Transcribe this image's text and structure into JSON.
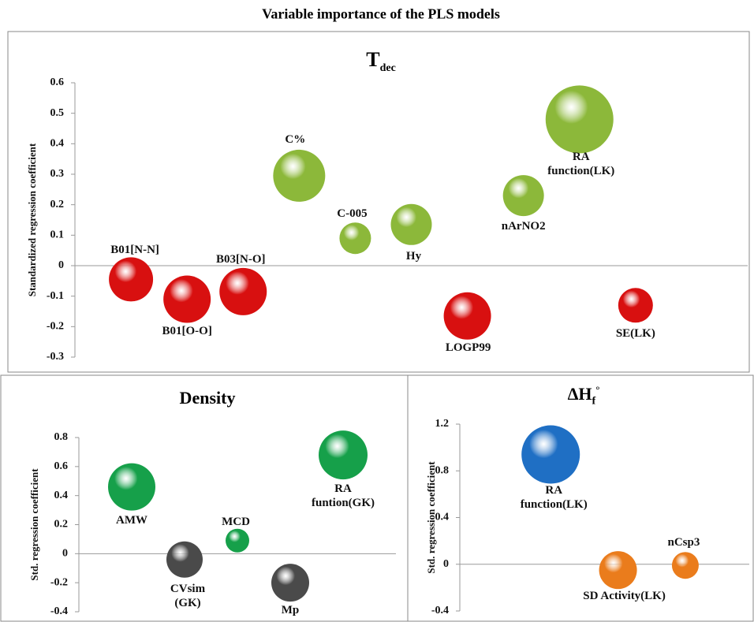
{
  "title": "Variable importance of the PLS models",
  "chart_data": [
    {
      "type": "bubble",
      "title": "T",
      "title_sub": "dec",
      "y_label": "Standardized regression coefficient",
      "labels": [
        "B01[N-N]",
        "B01[O-O]",
        "B03[N-O]",
        "C%",
        "C-005",
        "Hy",
        "LOGP99",
        "nArNO2",
        "RA\nfunction(LK)",
        "SE(LK)"
      ],
      "x": [
        0.5,
        1,
        1.5,
        2,
        2.5,
        3,
        3.5,
        4,
        4.5,
        5
      ],
      "values": [
        -0.045,
        -0.11,
        -0.085,
        0.295,
        0.09,
        0.135,
        -0.165,
        0.23,
        0.48,
        -0.13
      ],
      "sizes": [
        28,
        30,
        30,
        33,
        20,
        26,
        30,
        26,
        43,
        22
      ],
      "colors": [
        "#d81010",
        "#d81010",
        "#d81010",
        "#8cb83a",
        "#8cb83a",
        "#8cb83a",
        "#d81010",
        "#8cb83a",
        "#8cb83a",
        "#d81010"
      ],
      "xlim": [
        0,
        6
      ],
      "ylim": [
        -0.3,
        0.6
      ],
      "yticks": [
        -0.3,
        -0.2,
        -0.1,
        0,
        0.1,
        0.2,
        0.3,
        0.4,
        0.5,
        0.6
      ]
    },
    {
      "type": "bubble",
      "title": "Density",
      "y_label": "Std. regression coefficient",
      "labels": [
        "AMW",
        "CVsim\n(GK)",
        "MCD",
        "Mp",
        "RA\nfuntion(GK)"
      ],
      "x": [
        1,
        2,
        3,
        4,
        5
      ],
      "values": [
        0.46,
        -0.04,
        0.09,
        -0.2,
        0.68
      ],
      "sizes": [
        30,
        23,
        15,
        24,
        31
      ],
      "colors": [
        "#16a04a",
        "#4a4a4a",
        "#16a04a",
        "#4a4a4a",
        "#16a04a"
      ],
      "xlim": [
        0,
        6
      ],
      "ylim": [
        -0.4,
        0.8
      ],
      "yticks": [
        -0.4,
        -0.2,
        0,
        0.2,
        0.4,
        0.6,
        0.8
      ]
    },
    {
      "type": "bubble",
      "title": "ΔH",
      "title_sub": "f",
      "title_sup": "°",
      "y_label": "Std. regression coefficient",
      "labels": [
        "RA\nfunction(LK)",
        "SD Activity(LK)",
        "nCsp3"
      ],
      "x": [
        1,
        2,
        3
      ],
      "values": [
        0.94,
        -0.05,
        -0.01
      ],
      "sizes": [
        37,
        24,
        17
      ],
      "colors": [
        "#1f6fc4",
        "#ea7c1c",
        "#ea7c1c"
      ],
      "xlim": [
        -0.35,
        3.95
      ],
      "ylim": [
        -0.4,
        1.2
      ],
      "yticks": [
        -0.4,
        0,
        0.4,
        0.8,
        1.2
      ]
    }
  ]
}
